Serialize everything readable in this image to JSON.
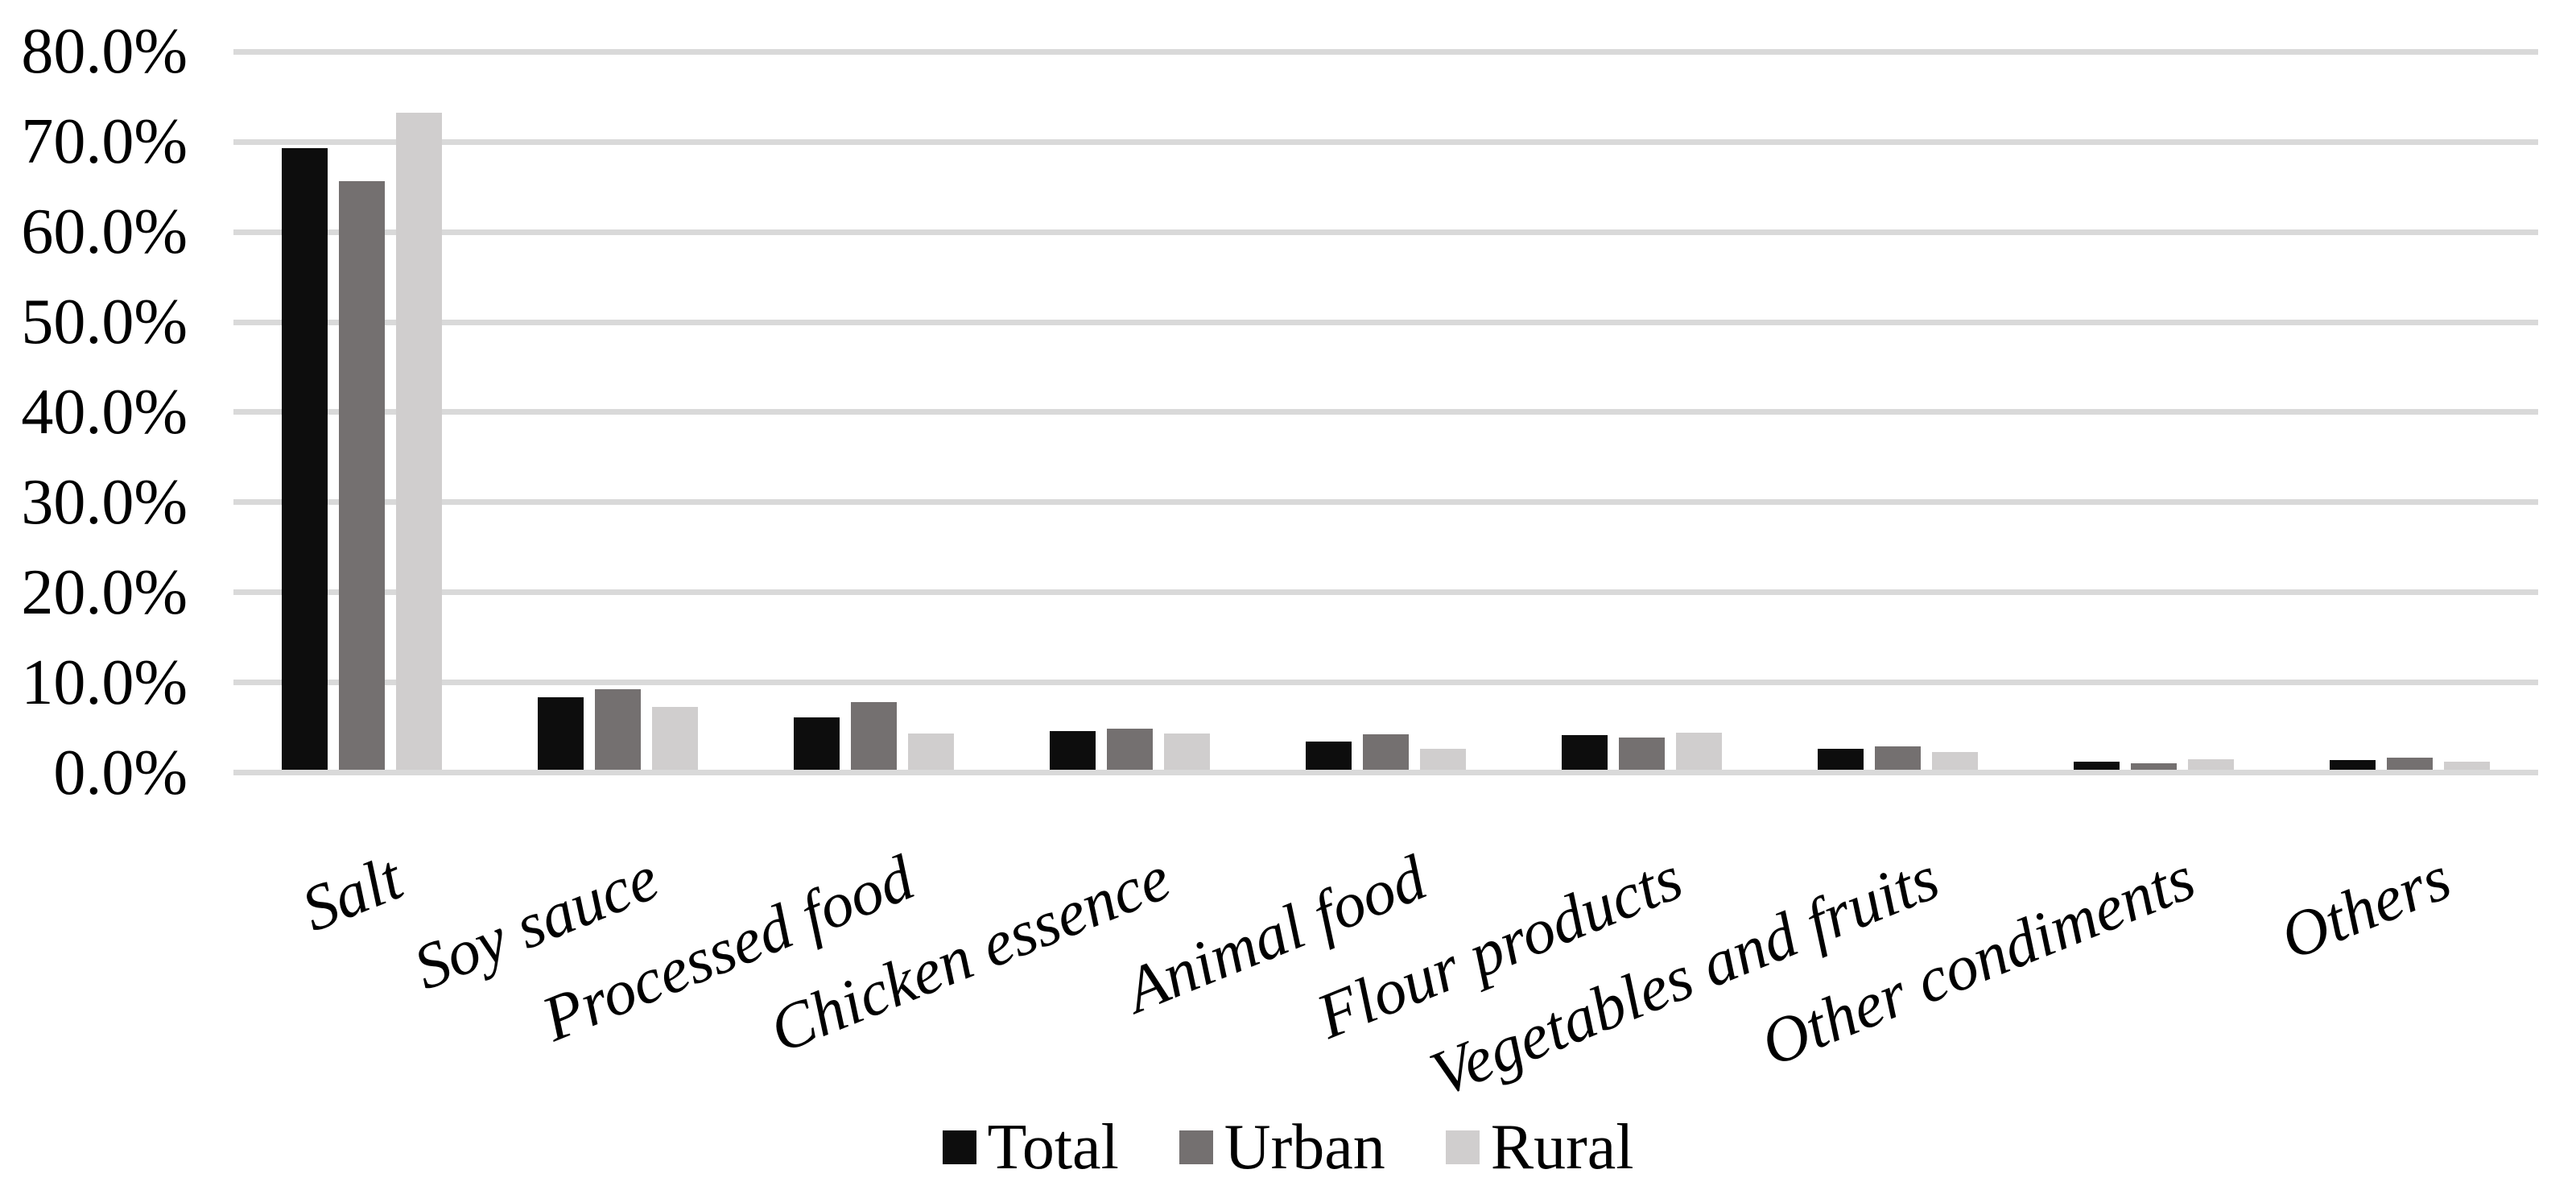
{
  "chart_data": {
    "type": "bar",
    "title": "",
    "categories": [
      "Salt",
      "Soy sauce",
      "Processed food",
      "Chicken essence",
      "Animal food",
      "Flour products",
      "Vegetables and fruits",
      "Other condiments",
      "Others"
    ],
    "series": [
      {
        "name": "Total",
        "color": "#0d0d0d",
        "values": [
          69.0,
          8.0,
          5.8,
          4.3,
          3.1,
          3.8,
          2.3,
          0.9,
          1.1
        ]
      },
      {
        "name": "Urban",
        "color": "#747070",
        "values": [
          65.3,
          8.9,
          7.5,
          4.6,
          3.9,
          3.6,
          2.6,
          0.7,
          1.3
        ]
      },
      {
        "name": "Rural",
        "color": "#d0cece",
        "values": [
          72.9,
          7.0,
          4.0,
          4.0,
          2.3,
          4.1,
          2.0,
          1.2,
          0.9
        ]
      }
    ],
    "xlabel": "",
    "ylabel": "",
    "ylim": [
      0,
      80
    ],
    "ytick_step": 10,
    "ytick_labels": [
      "0.0%",
      "10.0%",
      "20.0%",
      "30.0%",
      "40.0%",
      "50.0%",
      "60.0%",
      "70.0%",
      "80.0%"
    ],
    "grid": "horizontal",
    "gridline_color": "#d9d9d9",
    "axis_line_color": "#d9d9d9",
    "text_color": "#000000",
    "legend_position": "bottom",
    "legend_labels": [
      "Total",
      "Urban",
      "Rural"
    ]
  }
}
